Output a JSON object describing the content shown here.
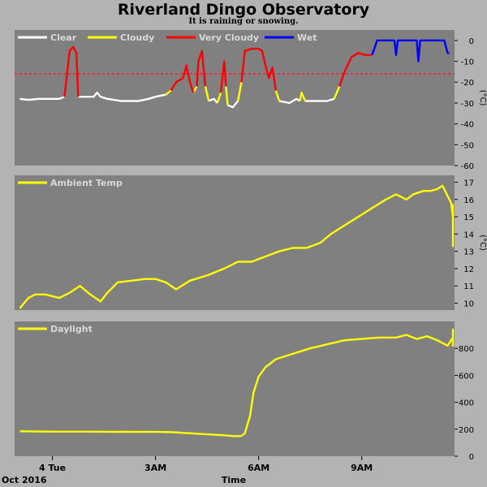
{
  "title": "Riverland Dingo Observatory",
  "subtitle": "It is raining or snowing.",
  "colors": {
    "clear": "#ffffff",
    "cloudy": "#ffff00",
    "very_cloudy": "#ff0000",
    "wet": "#0000ff",
    "panel": "#808080",
    "frame": "#b3b3b3",
    "threshold": "#ff0000"
  },
  "x_axis": {
    "label": "Time",
    "date_label": "Oct 2016",
    "range_hours": [
      -1.1,
      11.7
    ],
    "ticks": [
      {
        "h": 0,
        "label": "4 Tue"
      },
      {
        "h": 3,
        "label": "3AM"
      },
      {
        "h": 6,
        "label": "6AM"
      },
      {
        "h": 9,
        "label": "9AM"
      }
    ]
  },
  "chart_data": [
    {
      "type": "line",
      "title": "",
      "ylabel": "(°C)",
      "ylim": [
        -60,
        5
      ],
      "yticks": [
        0,
        -10,
        -20,
        -30,
        -40,
        -50,
        -60
      ],
      "threshold": -16,
      "legend": [
        {
          "name": "Clear",
          "color_key": "clear"
        },
        {
          "name": "Cloudy",
          "color_key": "cloudy"
        },
        {
          "name": "Very Cloudy",
          "color_key": "very_cloudy"
        },
        {
          "name": "Wet",
          "color_key": "wet"
        }
      ],
      "series": [
        {
          "name": "Clear",
          "color_key": "clear",
          "segments": [
            [
              [
                -0.95,
                -28
              ],
              [
                -0.7,
                -28.5
              ],
              [
                -0.4,
                -28
              ],
              [
                0,
                -28
              ],
              [
                0.2,
                -28
              ],
              [
                0.35,
                -27
              ]
            ],
            [
              [
                0.75,
                -27
              ],
              [
                1.0,
                -27
              ],
              [
                1.2,
                -27
              ],
              [
                1.3,
                -25
              ],
              [
                1.4,
                -27
              ],
              [
                1.6,
                -28
              ],
              [
                2.0,
                -29
              ],
              [
                2.5,
                -29
              ],
              [
                2.8,
                -28
              ],
              [
                3.0,
                -27
              ],
              [
                3.3,
                -26
              ]
            ],
            [
              [
                4.55,
                -29
              ],
              [
                4.7,
                -28
              ],
              [
                4.8,
                -30
              ]
            ],
            [
              [
                5.1,
                -31
              ],
              [
                5.25,
                -32
              ],
              [
                5.4,
                -29
              ]
            ],
            [
              [
                6.6,
                -29
              ],
              [
                6.9,
                -30
              ],
              [
                7.1,
                -28
              ],
              [
                7.2,
                -29
              ]
            ],
            [
              [
                7.35,
                -29
              ],
              [
                7.7,
                -29
              ],
              [
                8.0,
                -29
              ],
              [
                8.2,
                -28
              ]
            ]
          ]
        },
        {
          "name": "Cloudy",
          "color_key": "cloudy",
          "segments": [
            [
              [
                3.3,
                -26
              ],
              [
                3.45,
                -24
              ]
            ],
            [
              [
                4.1,
                -25
              ],
              [
                4.2,
                -22
              ]
            ],
            [
              [
                4.45,
                -22
              ],
              [
                4.55,
                -29
              ]
            ],
            [
              [
                4.8,
                -30
              ],
              [
                4.9,
                -25
              ]
            ],
            [
              [
                5.05,
                -22
              ],
              [
                5.1,
                -31
              ]
            ],
            [
              [
                5.4,
                -29
              ],
              [
                5.5,
                -20
              ]
            ],
            [
              [
                6.5,
                -24
              ],
              [
                6.6,
                -29
              ]
            ],
            [
              [
                7.2,
                -29
              ],
              [
                7.25,
                -25
              ],
              [
                7.35,
                -29
              ]
            ],
            [
              [
                8.2,
                -28
              ],
              [
                8.35,
                -22
              ]
            ]
          ]
        },
        {
          "name": "Very Cloudy",
          "color_key": "very_cloudy",
          "segments": [
            [
              [
                0.35,
                -27
              ],
              [
                0.5,
                -5
              ],
              [
                0.6,
                -3
              ],
              [
                0.7,
                -6
              ],
              [
                0.75,
                -27
              ]
            ],
            [
              [
                3.45,
                -24
              ],
              [
                3.6,
                -20
              ],
              [
                3.8,
                -18
              ],
              [
                3.9,
                -12
              ],
              [
                4.0,
                -20
              ],
              [
                4.1,
                -25
              ]
            ],
            [
              [
                4.2,
                -22
              ],
              [
                4.25,
                -10
              ],
              [
                4.35,
                -5
              ],
              [
                4.45,
                -22
              ]
            ],
            [
              [
                4.9,
                -25
              ],
              [
                5.0,
                -10
              ],
              [
                5.05,
                -22
              ]
            ],
            [
              [
                5.5,
                -20
              ],
              [
                5.6,
                -5
              ],
              [
                5.8,
                -4
              ],
              [
                6.0,
                -4
              ],
              [
                6.1,
                -5
              ],
              [
                6.2,
                -12
              ],
              [
                6.3,
                -18
              ],
              [
                6.4,
                -13
              ],
              [
                6.5,
                -24
              ]
            ],
            [
              [
                8.35,
                -22
              ],
              [
                8.5,
                -15
              ],
              [
                8.7,
                -8
              ],
              [
                8.9,
                -6
              ],
              [
                9.1,
                -7
              ],
              [
                9.3,
                -7
              ]
            ]
          ]
        },
        {
          "name": "Wet",
          "color_key": "wet",
          "segments": [
            [
              [
                9.3,
                -7
              ],
              [
                9.45,
                0
              ],
              [
                9.8,
                0
              ],
              [
                9.95,
                0
              ],
              [
                10.0,
                -7
              ],
              [
                10.05,
                0
              ],
              [
                10.4,
                0
              ],
              [
                10.6,
                0
              ],
              [
                10.65,
                -10
              ],
              [
                10.7,
                0
              ],
              [
                11.0,
                0
              ],
              [
                11.4,
                0
              ],
              [
                11.5,
                -6
              ],
              [
                11.55,
                -6
              ]
            ]
          ]
        }
      ]
    },
    {
      "type": "line",
      "title": "",
      "ylabel": "(°C)",
      "ylim": [
        9.6,
        17.4
      ],
      "yticks": [
        10,
        11,
        12,
        13,
        14,
        15,
        16,
        17
      ],
      "legend": [
        {
          "name": "Ambient Temp",
          "color_key": "cloudy"
        }
      ],
      "series": [
        {
          "name": "Ambient Temp",
          "color_key": "cloudy",
          "points": [
            [
              -0.95,
              9.7
            ],
            [
              -0.7,
              10.3
            ],
            [
              -0.5,
              10.5
            ],
            [
              -0.2,
              10.5
            ],
            [
              0.2,
              10.3
            ],
            [
              0.5,
              10.6
            ],
            [
              0.8,
              11.0
            ],
            [
              1.1,
              10.5
            ],
            [
              1.4,
              10.1
            ],
            [
              1.6,
              10.6
            ],
            [
              1.9,
              11.2
            ],
            [
              2.3,
              11.3
            ],
            [
              2.7,
              11.4
            ],
            [
              3.0,
              11.4
            ],
            [
              3.3,
              11.2
            ],
            [
              3.6,
              10.8
            ],
            [
              4.0,
              11.3
            ],
            [
              4.5,
              11.6
            ],
            [
              5.0,
              12.0
            ],
            [
              5.4,
              12.4
            ],
            [
              5.8,
              12.4
            ],
            [
              6.2,
              12.7
            ],
            [
              6.6,
              13.0
            ],
            [
              7.0,
              13.2
            ],
            [
              7.4,
              13.2
            ],
            [
              7.8,
              13.5
            ],
            [
              8.1,
              14.0
            ],
            [
              8.5,
              14.5
            ],
            [
              8.9,
              15.0
            ],
            [
              9.3,
              15.5
            ],
            [
              9.7,
              16.0
            ],
            [
              10.0,
              16.3
            ],
            [
              10.3,
              16.0
            ],
            [
              10.5,
              16.3
            ],
            [
              10.8,
              16.5
            ],
            [
              11.0,
              16.5
            ],
            [
              11.2,
              16.6
            ],
            [
              11.35,
              16.8
            ],
            [
              11.5,
              16.2
            ],
            [
              11.6,
              15.8
            ],
            [
              11.7,
              15.0
            ],
            [
              11.85,
              14.0
            ],
            [
              12.0,
              13.8
            ],
            [
              12.1,
              13.9
            ],
            [
              12.2,
              15.4
            ],
            [
              12.3,
              15.7
            ],
            [
              12.4,
              14.6
            ],
            [
              12.5,
              13.5
            ],
            [
              12.6,
              13.3
            ],
            [
              12.75,
              14.0
            ],
            [
              12.9,
              15.0
            ],
            [
              13.0,
              15.5
            ]
          ]
        }
      ]
    },
    {
      "type": "line",
      "title": "",
      "ylabel": "",
      "ylim": [
        0,
        1000
      ],
      "yticks": [
        0,
        200,
        400,
        600,
        800
      ],
      "legend": [
        {
          "name": "Daylight",
          "color_key": "cloudy"
        }
      ],
      "series": [
        {
          "name": "Daylight",
          "color_key": "cloudy",
          "points": [
            [
              -0.95,
              185
            ],
            [
              0,
              182
            ],
            [
              1,
              182
            ],
            [
              2,
              181
            ],
            [
              3,
              180
            ],
            [
              3.5,
              178
            ],
            [
              4,
              170
            ],
            [
              4.5,
              162
            ],
            [
              5,
              155
            ],
            [
              5.3,
              148
            ],
            [
              5.5,
              150
            ],
            [
              5.6,
              170
            ],
            [
              5.75,
              300
            ],
            [
              5.85,
              470
            ],
            [
              6.0,
              590
            ],
            [
              6.2,
              660
            ],
            [
              6.5,
              720
            ],
            [
              7.0,
              760
            ],
            [
              7.5,
              800
            ],
            [
              8.0,
              830
            ],
            [
              8.5,
              860
            ],
            [
              9.0,
              870
            ],
            [
              9.5,
              880
            ],
            [
              10.0,
              880
            ],
            [
              10.3,
              900
            ],
            [
              10.6,
              870
            ],
            [
              10.9,
              890
            ],
            [
              11.2,
              860
            ],
            [
              11.5,
              820
            ],
            [
              11.8,
              880
            ],
            [
              12.0,
              900
            ],
            [
              12.2,
              820
            ],
            [
              12.4,
              900
            ],
            [
              12.6,
              880
            ],
            [
              12.8,
              940
            ],
            [
              13.0,
              870
            ]
          ]
        }
      ]
    }
  ]
}
